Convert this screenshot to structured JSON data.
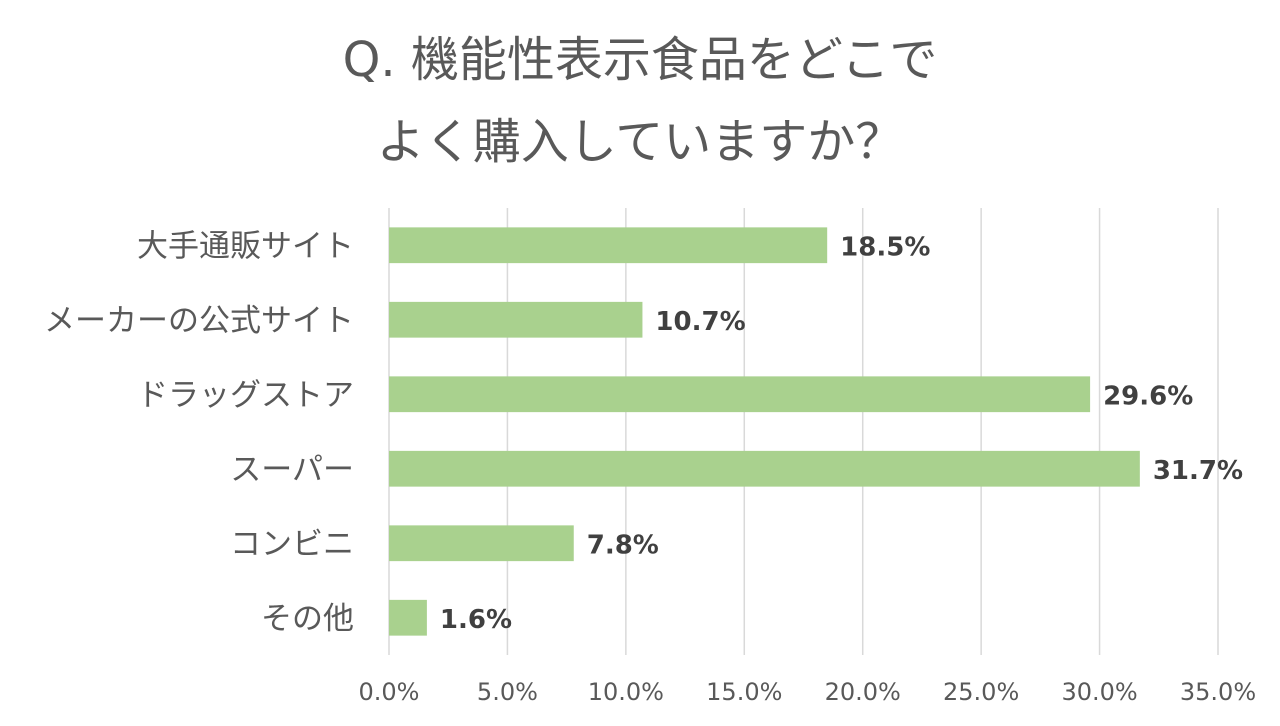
{
  "chart_data": {
    "type": "bar",
    "orientation": "horizontal",
    "title": [
      "Q. 機能性表示食品をどこで",
      "よく購入していますか？"
    ],
    "categories": [
      "大手通販サイト",
      "メーカーの公式サイト",
      "ドラッグストア",
      "スーパー",
      "コンビニ",
      "その他"
    ],
    "values": [
      18.5,
      10.7,
      29.6,
      31.7,
      7.8,
      1.6
    ],
    "data_labels": [
      "18.5%",
      "10.7%",
      "29.6%",
      "31.7%",
      "7.8%",
      "1.6%"
    ],
    "xlim": [
      0,
      35
    ],
    "xticks": [
      "0.0%",
      "5.0%",
      "10.0%",
      "15.0%",
      "20.0%",
      "25.0%",
      "30.0%",
      "35.0%"
    ],
    "grid": true,
    "legend": "none",
    "bar_color": "#a9d18e",
    "grid_color": "#d9d9d9",
    "text_color": "#595959"
  }
}
